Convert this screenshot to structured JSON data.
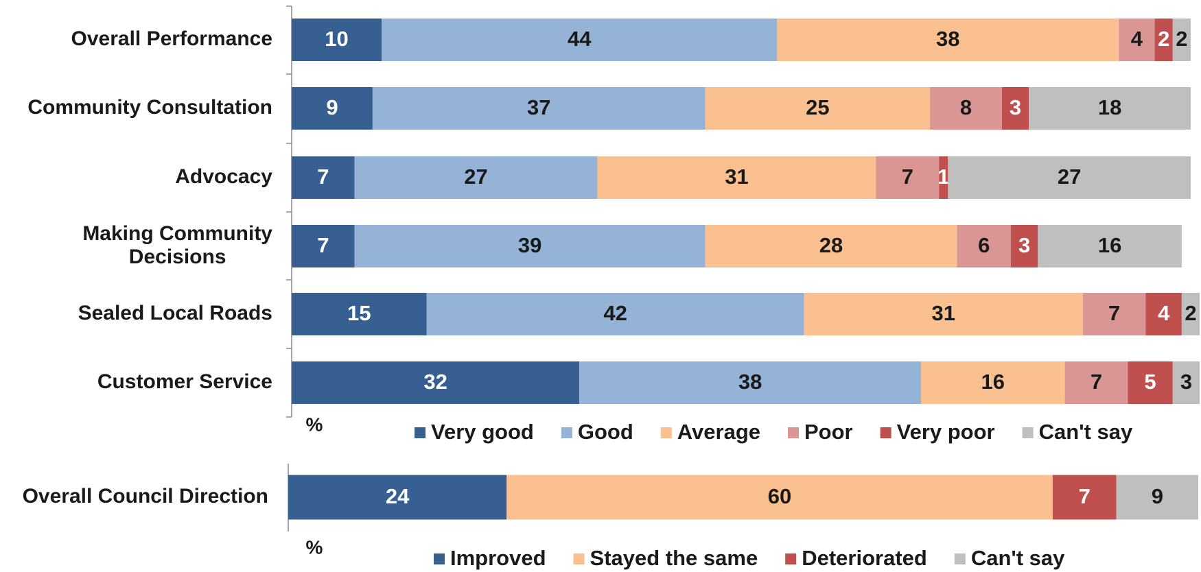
{
  "chart_data": [
    {
      "type": "stacked_bar_horizontal",
      "categories": [
        "Overall Performance",
        "Community Consultation",
        "Advocacy",
        "Making Community Decisions",
        "Sealed Local Roads",
        "Customer Service"
      ],
      "series": [
        {
          "name": "Very good",
          "color": "#375f91",
          "label_color": "#ffffff",
          "values": [
            10,
            9,
            7,
            7,
            15,
            32
          ]
        },
        {
          "name": "Good",
          "color": "#95b3d7",
          "label_color": "#1a1a1a",
          "values": [
            44,
            37,
            27,
            39,
            42,
            38
          ]
        },
        {
          "name": "Average",
          "color": "#fac090",
          "label_color": "#1a1a1a",
          "values": [
            38,
            25,
            31,
            28,
            31,
            16
          ]
        },
        {
          "name": "Poor",
          "color": "#d99694",
          "label_color": "#1a1a1a",
          "values": [
            4,
            8,
            7,
            6,
            7,
            7
          ]
        },
        {
          "name": "Very poor",
          "color": "#c0504d",
          "label_color": "#ffffff",
          "values": [
            2,
            3,
            1,
            3,
            4,
            5
          ]
        },
        {
          "name": "Can't say",
          "color": "#bfbfbf",
          "label_color": "#1a1a1a",
          "values": [
            2,
            18,
            27,
            16,
            2,
            3
          ]
        }
      ],
      "xlim": [
        0,
        100
      ],
      "xlabel": "%",
      "legend": "bottom"
    },
    {
      "type": "stacked_bar_horizontal",
      "categories": [
        "Overall Council Direction"
      ],
      "series": [
        {
          "name": "Improved",
          "color": "#375f91",
          "label_color": "#ffffff",
          "values": [
            24
          ]
        },
        {
          "name": "Stayed the same",
          "color": "#fac090",
          "label_color": "#1a1a1a",
          "values": [
            60
          ]
        },
        {
          "name": "Deteriorated",
          "color": "#c0504d",
          "label_color": "#ffffff",
          "values": [
            7
          ]
        },
        {
          "name": "Can't say",
          "color": "#bfbfbf",
          "label_color": "#1a1a1a",
          "values": [
            9
          ]
        }
      ],
      "xlim": [
        0,
        100
      ],
      "xlabel": "%",
      "legend": "bottom"
    }
  ]
}
